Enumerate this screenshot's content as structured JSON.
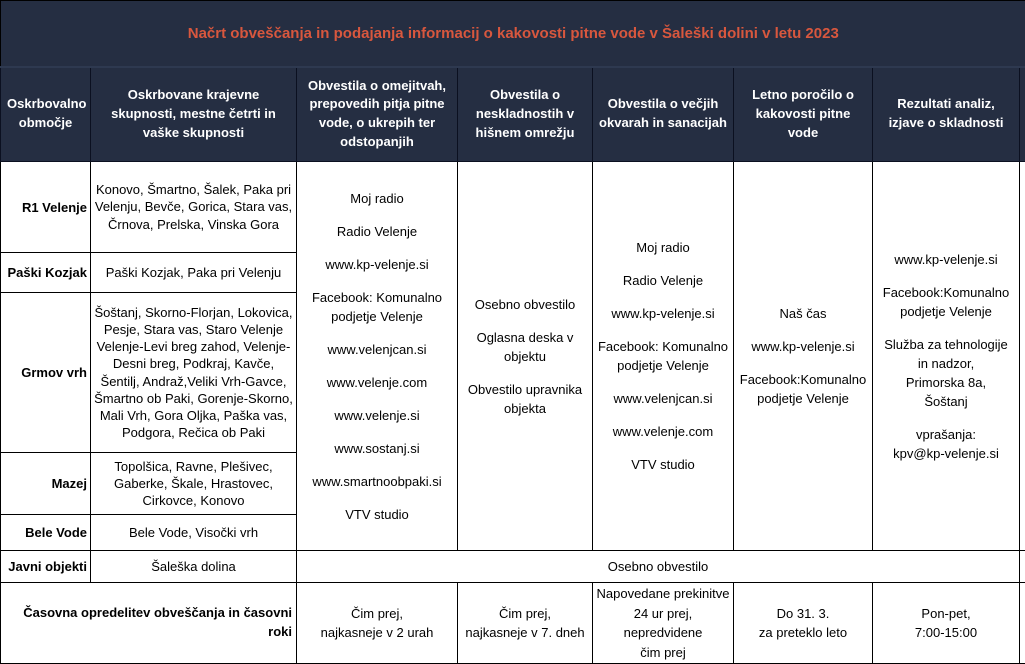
{
  "title": "Načrt obveščanja in podajanja informacij o kakovosti pitne vode v Šaleški dolini v letu 2023",
  "colors": {
    "header_bg": "#252e42",
    "title_text": "#d8573e",
    "header_text": "#ffffff",
    "body_bg": "#ffffff",
    "border": "#000000"
  },
  "columns": [
    "Oskrbovalno območje",
    "Oskrbovane krajevne skupnosti, mestne četrti in vaške skupnosti",
    "Obvestila o omejitvah, prepovedih pitja pitne vode, o ukrepih  ter odstopanjih",
    "Obvestila o neskladnostih v hišnem omrežju",
    "Obvestila o večjih okvarah in sanacijah",
    "Letno poročilo o kakovosti pitne vode",
    "Rezultati analiz, izjave o skladnosti"
  ],
  "areas": [
    {
      "name": "R1 Velenje",
      "settlements": "Konovo, Šmartno, Šalek, Paka pri Velenju, Bevče, Gorica, Stara vas, Črnova, Prelska, Vinska Gora"
    },
    {
      "name": "Paški Kozjak",
      "settlements": "Paški Kozjak, Paka pri Velenju"
    },
    {
      "name": "Grmov vrh",
      "settlements": "Šoštanj, Skorno-Florjan, Lokovica, Pesje, Stara vas, Staro Velenje Velenje-Levi breg zahod, Velenje-Desni breg, Podkraj, Kavče, Šentilj, Andraž,Veliki Vrh-Gavce, Šmartno ob Paki, Gorenje-Skorno, Mali Vrh, Gora Oljka, Paška vas, Podgora, Rečica ob Paki"
    },
    {
      "name": "Mazej",
      "settlements": "Topolšica, Ravne, Plešivec, Gaberke, Škale, Hrastovec, Cirkovce, Konovo"
    },
    {
      "name": "Bele Vode",
      "settlements": "Bele Vode, Visočki vrh"
    },
    {
      "name": "Javni objekti",
      "settlements": "Šaleška dolina"
    }
  ],
  "channels": {
    "restrictions": [
      "Moj radio",
      "Radio Velenje",
      "www.kp-velenje.si",
      "Facebook: Komunalno\npodjetje Velenje",
      "www.velenjcan.si",
      "www.velenje.com",
      "www.velenje.si",
      "www.sostanj.si",
      "www.smartnoobpaki.si",
      "VTV studio"
    ],
    "noncompliance": [
      "Osebno obvestilo",
      "Oglasna deska v\nobjektu",
      "Obvestilo upravnika\nobjekta"
    ],
    "outages": [
      "Moj radio",
      "Radio Velenje",
      "www.kp-velenje.si",
      "Facebook: Komunalno\npodjetje Velenje",
      "www.velenjcan.si",
      "www.velenje.com",
      "VTV studio"
    ],
    "annual_report": [
      "Naš čas",
      "www.kp-velenje.si",
      "Facebook:Komunalno\npodjetje Velenje"
    ],
    "results": [
      "www.kp-velenje.si",
      "Facebook:Komunalno\npodjetje Velenje",
      "Služba za tehnologije\nin nadzor,\nPrimorska 8a,\nŠoštanj",
      "vprašanja:\nkpv@kp-velenje.si"
    ]
  },
  "public_objects_note": "Osebno obvestilo",
  "timing": {
    "label": "Časovna opredelitev obveščanja in časovni roki",
    "restrictions": "Čim prej,\nnajkasneje v 2 urah",
    "noncompliance": "Čim prej,\nnajkasneje v 7. dneh",
    "outages": "Napovedane prekinitve\n24 ur prej, nepredvidene\nčim prej",
    "annual_report": "Do 31. 3.\nza preteklo leto",
    "results": "Pon-pet,\n7:00-15:00"
  }
}
